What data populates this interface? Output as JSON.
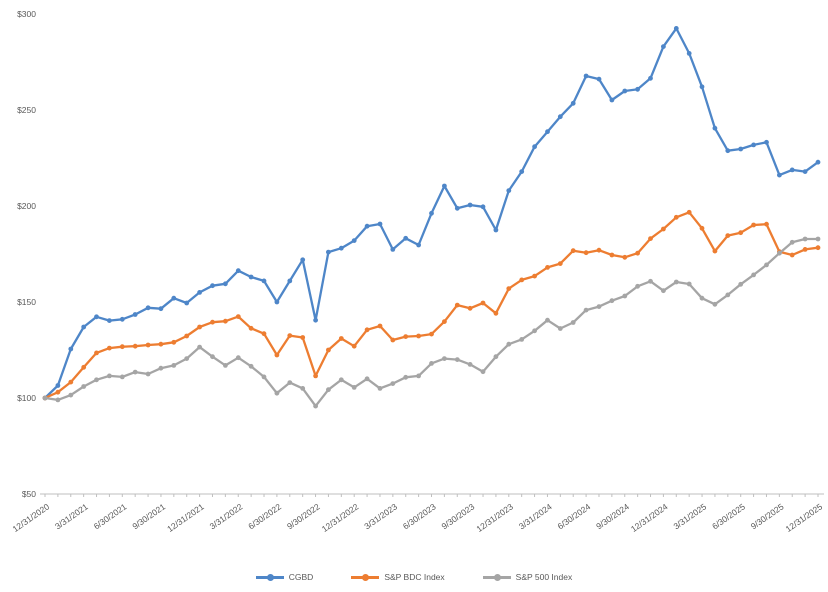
{
  "colors": {
    "background": "#FFFFFF",
    "axis_line": "#BFBFBF",
    "tick_text": "#595959",
    "cgbd_blue": "#4E86C8",
    "bdc_orange": "#ED7D31",
    "sp500_gray": "#A5A5A5"
  },
  "legend": {
    "items": [
      {
        "label": "CGBD"
      },
      {
        "label": "S&P BDC Index"
      },
      {
        "label": "S&P 500 Index"
      }
    ]
  },
  "chart_data": {
    "type": "line",
    "title": "",
    "xlabel": "",
    "ylabel": "",
    "grid": false,
    "markers": true,
    "legend_position": "bottom",
    "y_axis": {
      "min": 50,
      "max": 300,
      "tick_values": [
        300,
        250,
        200,
        150,
        100,
        50
      ],
      "tick_labels": [
        "$300",
        "$250",
        "$200",
        "$150",
        "$100",
        "$50"
      ]
    },
    "x_axis": {
      "label_every_n_months": 3,
      "tick_labels": [
        "12/31/2020",
        "3/31/2021",
        "6/30/2021",
        "9/30/2021",
        "12/31/2021",
        "3/31/2022",
        "6/30/2022",
        "9/30/2022",
        "12/31/2022",
        "3/31/2023",
        "6/30/2023",
        "9/30/2023",
        "12/31/2023",
        "3/31/2024",
        "6/30/2024",
        "9/30/2024",
        "12/31/2024",
        "3/31/2025",
        "6/30/2025",
        "9/30/2025",
        "12/31/2025"
      ]
    },
    "categories": [
      "12/31/2020",
      "1/31/2021",
      "2/28/2021",
      "3/31/2021",
      "4/30/2021",
      "5/31/2021",
      "6/30/2021",
      "7/31/2021",
      "8/31/2021",
      "9/30/2021",
      "10/31/2021",
      "11/30/2021",
      "12/31/2021",
      "1/31/2022",
      "2/28/2022",
      "3/31/2022",
      "4/30/2022",
      "5/31/2022",
      "6/30/2022",
      "7/31/2022",
      "8/31/2022",
      "9/30/2022",
      "10/31/2022",
      "11/30/2022",
      "12/31/2022",
      "1/31/2023",
      "2/28/2023",
      "3/31/2023",
      "4/30/2023",
      "5/31/2023",
      "6/30/2023",
      "7/31/2023",
      "8/31/2023",
      "9/30/2023",
      "10/31/2023",
      "11/30/2023",
      "12/31/2023",
      "1/31/2024",
      "2/29/2024",
      "3/31/2024",
      "4/30/2024",
      "5/31/2024",
      "6/30/2024",
      "7/31/2024",
      "8/31/2024",
      "9/30/2024",
      "10/31/2024",
      "11/30/2024",
      "12/31/2024",
      "1/31/2025",
      "2/28/2025",
      "3/31/2025",
      "4/30/2025",
      "5/31/2025",
      "6/30/2025",
      "7/31/2025",
      "8/31/2025",
      "9/30/2025",
      "10/31/2025",
      "11/30/2025",
      "12/31/2025"
    ],
    "series": [
      {
        "name": "CGBD",
        "color": "#4E86C8",
        "values": [
          100,
          106.5,
          125.5,
          137,
          142.3,
          140.3,
          141,
          143.5,
          147,
          146.5,
          152,
          149.5,
          155,
          158.5,
          159.5,
          166.3,
          163,
          161,
          150,
          161,
          172,
          140.5,
          176,
          178,
          182,
          189.5,
          190.6,
          177.4,
          183.2,
          179.7,
          196.2,
          210.4,
          198.8,
          200.5,
          199.6,
          187.5,
          208,
          217.9,
          230.9,
          238.7,
          246.5,
          253.5,
          267.7,
          266.1,
          255.2,
          259.9,
          260.8,
          266.5,
          283,
          292.5,
          279.5,
          262.1,
          240.5,
          228.8,
          229.7,
          231.8,
          233.2,
          216.1,
          218.8,
          217.9,
          222.8
        ]
      },
      {
        "name": "S&P BDC Index",
        "color": "#ED7D31",
        "values": [
          100,
          103,
          108.3,
          116,
          123.5,
          126,
          126.7,
          127,
          127.6,
          128,
          129,
          132.3,
          137,
          139.5,
          140,
          142.4,
          136.3,
          133.5,
          122.4,
          132.5,
          131.5,
          111.5,
          125,
          131,
          127,
          135.5,
          137.5,
          130.2,
          132,
          132.3,
          133.3,
          139.8,
          148.4,
          146.7,
          149.5,
          144.1,
          157,
          161.5,
          163.5,
          168,
          170,
          176.7,
          175.7,
          177,
          174.5,
          173.3,
          175.4,
          183,
          188,
          194.1,
          196.7,
          188.4,
          176.5,
          184.6,
          186.1,
          190.1,
          190.5,
          176.2,
          174.5,
          177.4,
          178.3
        ]
      },
      {
        "name": "S&P 500 Index",
        "color": "#A5A5A5",
        "values": [
          100,
          99,
          101.5,
          106,
          109.5,
          111.5,
          111,
          113.5,
          112.5,
          115.5,
          117,
          120.5,
          126.5,
          121.5,
          117,
          121,
          116.5,
          111,
          102.5,
          108,
          105,
          95.8,
          104.3,
          109.5,
          105.5,
          110,
          105,
          107.5,
          110.8,
          111.5,
          118,
          120.5,
          120,
          117.5,
          113.7,
          121.5,
          128,
          130.5,
          135,
          140.5,
          136.2,
          139.3,
          145.8,
          147.6,
          150.7,
          153.1,
          158.2,
          160.8,
          155.9,
          160.4,
          159.4,
          152,
          148.8,
          153.7,
          159.2,
          164.1,
          169.3,
          175.4,
          181.1,
          182.8,
          182.8
        ]
      }
    ]
  }
}
